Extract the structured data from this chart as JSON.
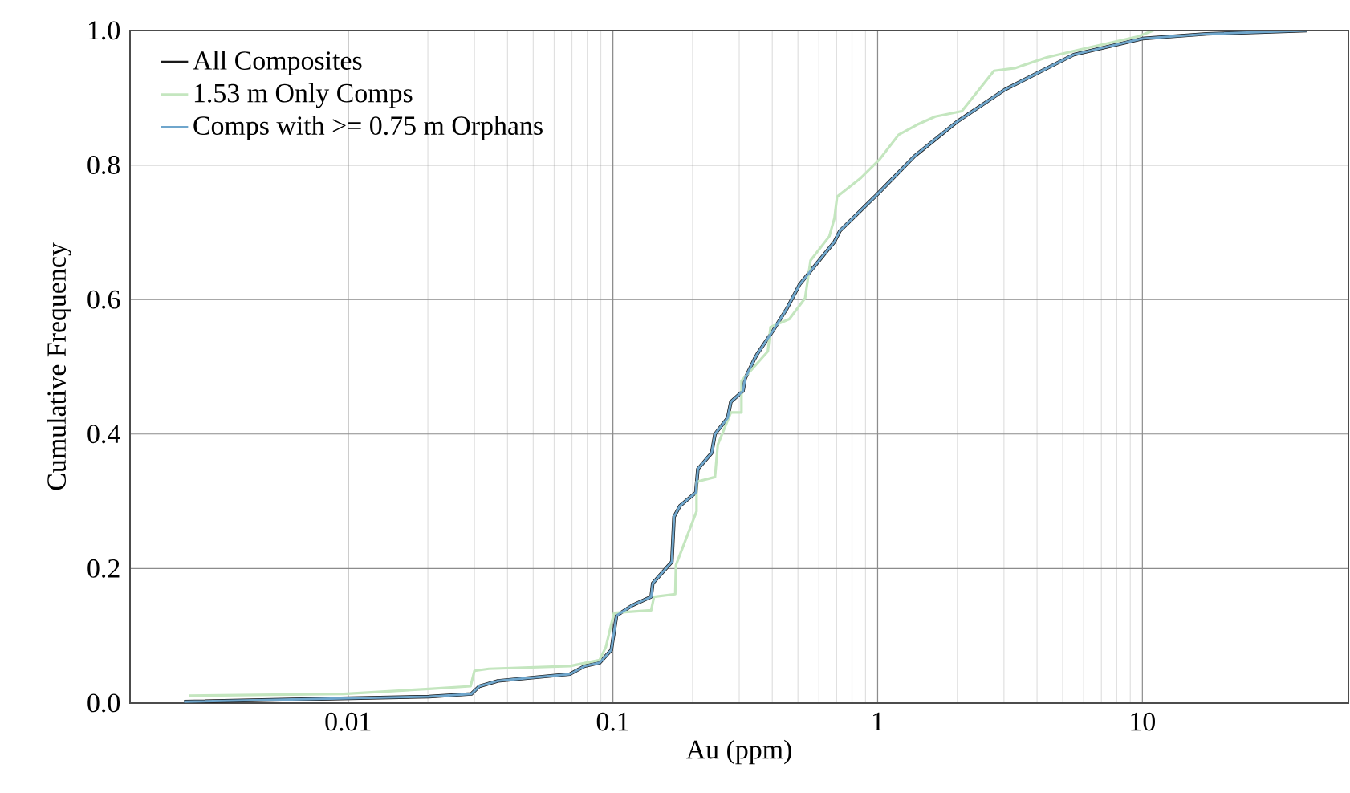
{
  "chart_data": {
    "type": "line",
    "xlabel": "Au (ppm)",
    "ylabel": "Cumulative Frequency",
    "log": "x",
    "xlim": [
      0.0015,
      60
    ],
    "ylim": [
      0,
      1.0
    ],
    "xticks": [
      0.01,
      0.1,
      1,
      10
    ],
    "yticks": [
      {
        "value": 0,
        "label": "0.0"
      },
      0.2,
      0.4,
      0.6,
      0.8,
      {
        "value": 1,
        "label": "1.0"
      }
    ],
    "grid": true,
    "legend": "top left",
    "marker": "none",
    "line_style": "solid",
    "series": [
      {
        "name": "All Composites",
        "color": "#1a1a1a",
        "x": [
          0.0024,
          0.0202,
          0.0292,
          0.0313,
          0.0368,
          0.0688,
          0.0782,
          0.0891,
          0.0986,
          0.1032,
          0.118,
          0.1395,
          0.1414,
          0.167,
          0.1702,
          0.179,
          0.2057,
          0.2094,
          0.2362,
          0.243,
          0.2714,
          0.279,
          0.31,
          0.316,
          0.343,
          0.351,
          0.4046,
          0.4532,
          0.5066,
          0.687,
          0.72,
          1.0,
          1.376,
          1.99,
          3.02,
          5.5,
          10.0,
          17.5,
          41.7
        ],
        "values": [
          0.002,
          0.0095,
          0.0135,
          0.025,
          0.033,
          0.043,
          0.055,
          0.06,
          0.079,
          0.13,
          0.145,
          0.158,
          0.178,
          0.21,
          0.277,
          0.293,
          0.313,
          0.348,
          0.372,
          0.4,
          0.424,
          0.448,
          0.464,
          0.483,
          0.512,
          0.519,
          0.555,
          0.586,
          0.622,
          0.686,
          0.702,
          0.757,
          0.813,
          0.864,
          0.912,
          0.964,
          0.988,
          0.995,
          1.0
        ]
      },
      {
        "name": "1.53 m Only Comps",
        "color": "#c4e6bf",
        "x": [
          0.0025,
          0.0096,
          0.0202,
          0.029,
          0.03,
          0.034,
          0.0688,
          0.089,
          0.094,
          0.101,
          0.1395,
          0.143,
          0.172,
          0.173,
          0.207,
          0.207,
          0.243,
          0.249,
          0.279,
          0.306,
          0.306,
          0.385,
          0.394,
          0.464,
          0.532,
          0.558,
          0.657,
          0.687,
          0.703,
          0.866,
          1.02,
          1.2,
          1.41,
          1.65,
          2.08,
          2.75,
          3.3,
          4.35,
          5.73,
          9.6,
          11
        ],
        "values": [
          0.011,
          0.0135,
          0.021,
          0.025,
          0.048,
          0.051,
          0.055,
          0.064,
          0.083,
          0.134,
          0.138,
          0.158,
          0.162,
          0.205,
          0.285,
          0.329,
          0.336,
          0.384,
          0.432,
          0.432,
          0.479,
          0.523,
          0.559,
          0.571,
          0.602,
          0.658,
          0.694,
          0.721,
          0.753,
          0.781,
          0.809,
          0.845,
          0.86,
          0.872,
          0.88,
          0.94,
          0.944,
          0.96,
          0.971,
          0.991,
          1.0
        ]
      },
      {
        "name": "Comps with >= 0.75 m Orphans",
        "color": "#6fa6cc",
        "x": [
          0.0024,
          0.0202,
          0.0292,
          0.0313,
          0.0368,
          0.0688,
          0.0782,
          0.0891,
          0.0986,
          0.1032,
          0.118,
          0.1395,
          0.1414,
          0.167,
          0.1702,
          0.179,
          0.2057,
          0.2094,
          0.2362,
          0.243,
          0.2714,
          0.279,
          0.31,
          0.316,
          0.343,
          0.351,
          0.4046,
          0.4532,
          0.5066,
          0.687,
          0.72,
          1.0,
          1.376,
          1.99,
          3.02,
          5.5,
          10.0,
          17.5,
          41.7
        ],
        "values": [
          0.002,
          0.0095,
          0.0135,
          0.025,
          0.033,
          0.043,
          0.055,
          0.06,
          0.079,
          0.13,
          0.145,
          0.158,
          0.178,
          0.21,
          0.277,
          0.293,
          0.313,
          0.348,
          0.372,
          0.4,
          0.424,
          0.448,
          0.464,
          0.483,
          0.512,
          0.519,
          0.555,
          0.586,
          0.622,
          0.686,
          0.702,
          0.757,
          0.813,
          0.864,
          0.912,
          0.964,
          0.988,
          0.995,
          1.0
        ]
      }
    ]
  }
}
